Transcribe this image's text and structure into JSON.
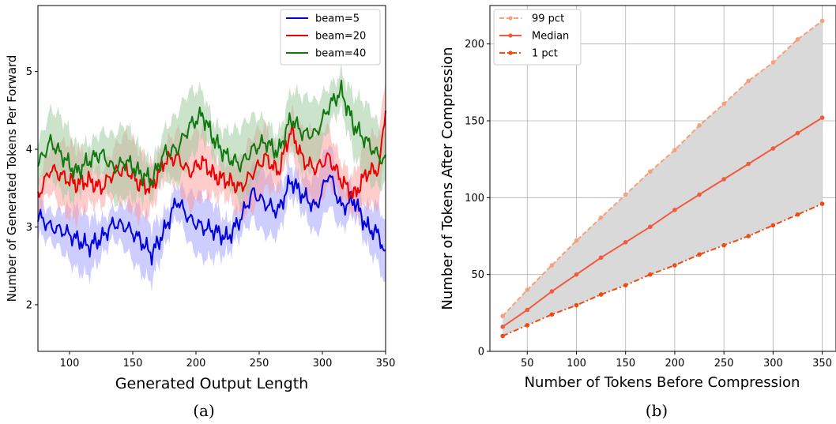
{
  "chart_data": [
    {
      "type": "line",
      "caption": "(a)",
      "xlabel": "Generated Output Length",
      "ylabel": "Number of Generated Tokens Per Forward",
      "xlim": [
        75,
        350
      ],
      "ylim": [
        1.4,
        5.85
      ],
      "xticks": [
        100,
        150,
        200,
        250,
        300,
        350
      ],
      "yticks": [
        2,
        3,
        4,
        5
      ],
      "grid": false,
      "legend": "top-right",
      "shaded_band": true,
      "x": [
        75,
        85,
        95,
        105,
        115,
        125,
        135,
        145,
        155,
        165,
        175,
        185,
        195,
        205,
        215,
        225,
        235,
        245,
        255,
        265,
        275,
        285,
        295,
        305,
        315,
        325,
        335,
        345,
        350
      ],
      "series": [
        {
          "name": "beam=5",
          "color": "#0000dd",
          "band_color": "#9c9cff",
          "band_width": 0.3,
          "values": [
            3.15,
            3.0,
            2.95,
            2.85,
            2.75,
            2.85,
            3.05,
            3.0,
            2.85,
            2.65,
            2.95,
            3.35,
            3.1,
            3.0,
            2.95,
            2.85,
            3.1,
            3.45,
            3.3,
            3.2,
            3.6,
            3.4,
            3.25,
            3.7,
            3.25,
            3.35,
            3.0,
            2.9,
            2.6
          ]
        },
        {
          "name": "beam=20",
          "color": "#ee0000",
          "band_color": "#ff9a9a",
          "band_width": 0.35,
          "values": [
            3.4,
            3.75,
            3.65,
            3.55,
            3.6,
            3.5,
            3.7,
            3.75,
            3.55,
            3.5,
            3.85,
            3.9,
            3.7,
            3.85,
            3.65,
            3.6,
            3.5,
            3.7,
            3.9,
            3.7,
            4.25,
            3.85,
            3.75,
            3.9,
            3.6,
            3.4,
            3.7,
            3.75,
            4.55
          ]
        },
        {
          "name": "beam=40",
          "color": "#117711",
          "band_color": "#98c898",
          "band_width": 0.35,
          "values": [
            3.8,
            4.1,
            3.9,
            3.7,
            3.85,
            3.95,
            3.75,
            3.85,
            3.7,
            3.6,
            3.95,
            4.0,
            4.3,
            4.45,
            4.1,
            3.9,
            3.8,
            4.0,
            4.1,
            3.95,
            4.4,
            4.2,
            4.2,
            4.55,
            4.75,
            4.3,
            4.1,
            3.9,
            3.85
          ]
        }
      ]
    },
    {
      "type": "line",
      "caption": "(b)",
      "xlabel": "Number of Tokens Before Compression",
      "ylabel": "Number of Tokens After Compression",
      "xlim": [
        12,
        364
      ],
      "ylim": [
        0,
        225
      ],
      "xticks": [
        50,
        100,
        150,
        200,
        250,
        300,
        350
      ],
      "yticks": [
        0,
        50,
        100,
        150,
        200
      ],
      "grid": true,
      "legend": "top-left",
      "fill_between": "99 pct to 1 pct",
      "fill_color": "#d9d9d9",
      "x": [
        25,
        50,
        75,
        100,
        125,
        150,
        175,
        200,
        225,
        250,
        275,
        300,
        325,
        350
      ],
      "series": [
        {
          "name": "99 pct",
          "color": "#f7a07a",
          "linestyle": "dashed",
          "values": [
            23,
            40,
            56,
            72,
            87,
            102,
            117,
            131,
            147,
            161,
            176,
            188,
            203,
            215
          ]
        },
        {
          "name": "Median",
          "color": "#f25a3e",
          "linestyle": "solid",
          "values": [
            16,
            27,
            39,
            50,
            61,
            71,
            81,
            92,
            102,
            112,
            122,
            132,
            142,
            152
          ]
        },
        {
          "name": "1 pct",
          "color": "#ee4a12",
          "linestyle": "dashdot",
          "values": [
            10,
            17,
            24,
            30,
            37,
            43,
            50,
            56,
            63,
            69,
            75,
            82,
            89,
            96
          ]
        }
      ]
    }
  ]
}
